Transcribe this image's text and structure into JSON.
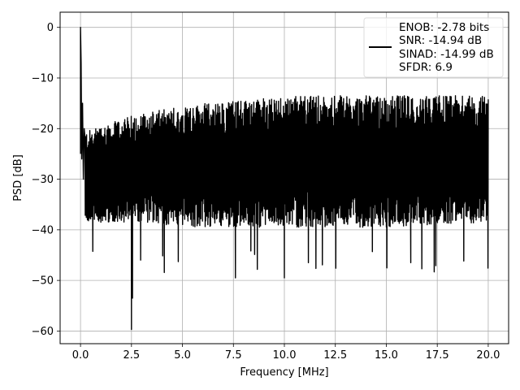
{
  "chart_data": {
    "type": "line",
    "xlabel": "Frequency [MHz]",
    "ylabel": "PSD [dB]",
    "xlim": [
      -1.0,
      21.0
    ],
    "ylim": [
      -62.5,
      3.0
    ],
    "xticks": [
      0.0,
      2.5,
      5.0,
      7.5,
      10.0,
      12.5,
      15.0,
      17.5,
      20.0
    ],
    "xtick_labels": [
      "0.0",
      "2.5",
      "5.0",
      "7.5",
      "10.0",
      "12.5",
      "15.0",
      "17.5",
      "20.0"
    ],
    "yticks": [
      0,
      -10,
      -20,
      -30,
      -40,
      -50,
      -60
    ],
    "ytick_labels": [
      "0",
      "−10",
      "−20",
      "−30",
      "−40",
      "−50",
      "−60"
    ],
    "grid": true,
    "line_color": "#000000",
    "legend_position": "top-right",
    "legend": {
      "lines": [
        "ENOB: -2.78 bits",
        "SNR: -14.94 dB",
        "SINAD: -14.99 dB",
        "SFDR: 6.9"
      ]
    },
    "series": [
      {
        "x_range": [
          0.0,
          20.0
        ],
        "peak": {
          "x": 0.0,
          "y": 0.0
        },
        "notable_points": [
          {
            "x": 0.03,
            "y": -7.0
          },
          {
            "x": 0.1,
            "y": -15.0
          },
          {
            "x": 2.5,
            "y": -59.7
          },
          {
            "x": 2.55,
            "y": -53.5
          },
          {
            "x": 7.6,
            "y": -49.5
          },
          {
            "x": 10.0,
            "y": -49.5
          },
          {
            "x": 16.2,
            "y": -46.5
          }
        ],
        "envelope": [
          {
            "x": 0.3,
            "upper": -22,
            "lower": -40
          },
          {
            "x": 2.5,
            "upper": -19,
            "lower": -40
          },
          {
            "x": 5.0,
            "upper": -17,
            "lower": -41
          },
          {
            "x": 10.0,
            "upper": -15,
            "lower": -41
          },
          {
            "x": 15.0,
            "upper": -15,
            "lower": -41
          },
          {
            "x": 20.0,
            "upper": -15,
            "lower": -40
          }
        ],
        "mean_level": -28
      }
    ]
  }
}
